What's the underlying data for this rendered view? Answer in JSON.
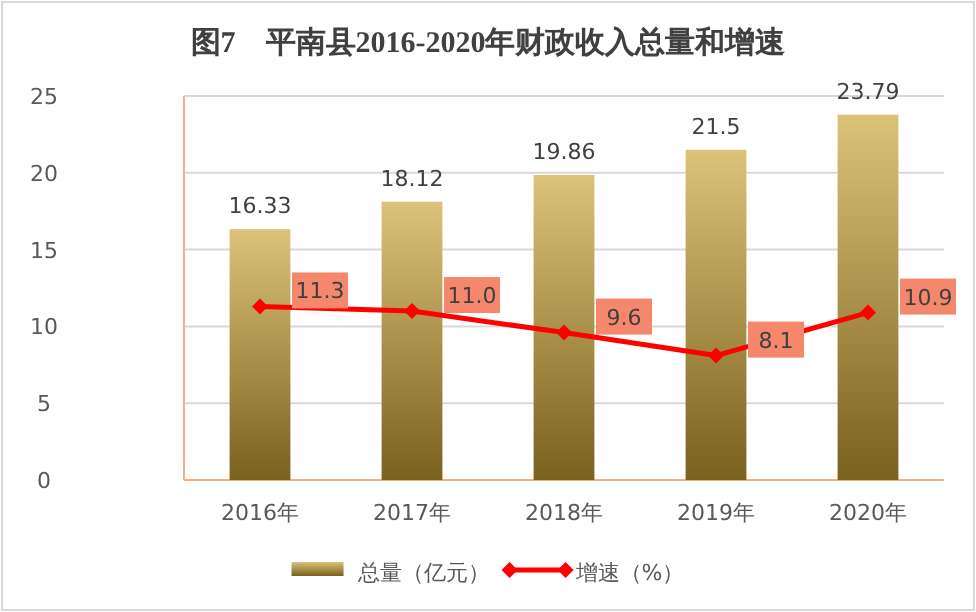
{
  "chart_data": {
    "type": "bar",
    "title": "图7　平南县2016-2020年财政收入总量和增速",
    "categories": [
      "2016年",
      "2017年",
      "2018年",
      "2019年",
      "2020年"
    ],
    "series": [
      {
        "name": "总量（亿元）",
        "color": "#c9a232",
        "values": [
          16.33,
          18.12,
          19.86,
          21.5,
          23.79
        ],
        "value_labels": [
          "16.33",
          "18.12",
          "19.86",
          "21.5",
          "23.79"
        ]
      },
      {
        "name": "增速（%）",
        "type": "line",
        "color": "#ff0000",
        "marker": "diamond",
        "values": [
          11.3,
          11.0,
          9.6,
          8.1,
          10.9
        ],
        "value_labels": [
          "11.3",
          "11.0",
          "9.6",
          "8.1",
          "10.9"
        ]
      }
    ],
    "ylim": [
      0,
      25
    ],
    "yticks": [
      0,
      5,
      10,
      15,
      20,
      25
    ],
    "grid": "y",
    "legend": "bottom"
  }
}
